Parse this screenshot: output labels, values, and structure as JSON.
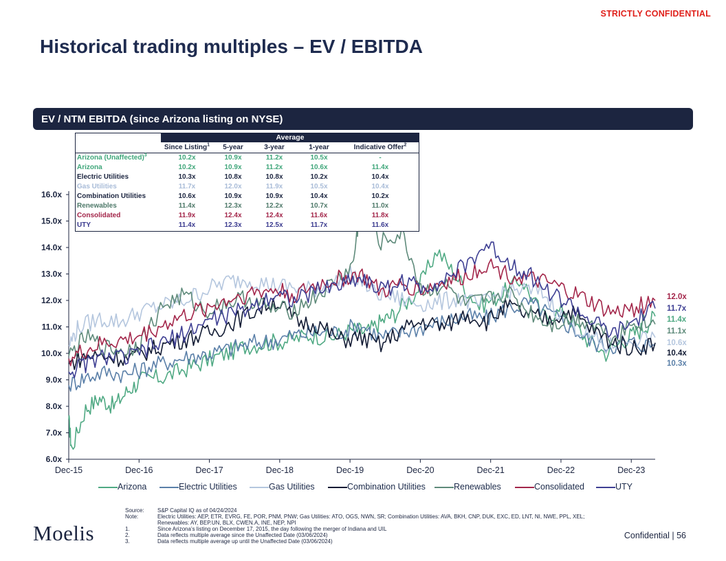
{
  "header": {
    "confidential": "STRICTLY CONFIDENTIAL",
    "title": "Historical trading multiples – EV / EBITDA"
  },
  "banner": {
    "title": "EV / NTM EBITDA (since Arizona listing on NYSE)"
  },
  "table": {
    "group_header": "Average",
    "columns": [
      "Since Listing",
      "5-year",
      "3-year",
      "1-year",
      "Indicative Offer"
    ],
    "column_sups": [
      "1",
      "",
      "",
      "",
      "2"
    ],
    "rows": [
      {
        "label": "Arizona (Unaffected)",
        "sup": "3",
        "values": [
          "10.2x",
          "10.9x",
          "11.2x",
          "10.5x",
          "-"
        ],
        "color": "#3fa67a"
      },
      {
        "label": "Arizona",
        "sup": "",
        "values": [
          "10.2x",
          "10.9x",
          "11.2x",
          "10.6x",
          "11.4x"
        ],
        "color": "#3fa67a"
      },
      {
        "label": "Electric Utilities",
        "sup": "",
        "values": [
          "10.3x",
          "10.8x",
          "10.8x",
          "10.2x",
          "10.4x"
        ],
        "color": "#1c2540"
      },
      {
        "label": "Gas Utilities",
        "sup": "",
        "values": [
          "11.7x",
          "12.0x",
          "11.9x",
          "10.5x",
          "10.4x"
        ],
        "color": "#a9bcd8"
      },
      {
        "label": "Combination Utilities",
        "sup": "",
        "values": [
          "10.6x",
          "10.9x",
          "10.9x",
          "10.4x",
          "10.2x"
        ],
        "color": "#1c2540"
      },
      {
        "label": "Renewables",
        "sup": "",
        "values": [
          "11.4x",
          "12.3x",
          "12.2x",
          "10.7x",
          "11.0x"
        ],
        "color": "#4f7a6a"
      },
      {
        "label": "Consolidated",
        "sup": "",
        "values": [
          "11.9x",
          "12.4x",
          "12.4x",
          "11.6x",
          "11.8x"
        ],
        "color": "#a3264a"
      },
      {
        "label": "UTY",
        "sup": "",
        "values": [
          "11.4x",
          "12.3x",
          "12.5x",
          "11.7x",
          "11.6x"
        ],
        "color": "#3b3b8f"
      }
    ]
  },
  "chart_data": {
    "type": "line",
    "title": "EV / NTM EBITDA (since Arizona listing on NYSE)",
    "y_tick_labels": [
      "6.0x",
      "7.0x",
      "8.0x",
      "9.0x",
      "10.0x",
      "11.0x",
      "12.0x",
      "13.0x",
      "14.0x",
      "15.0x",
      "16.0x"
    ],
    "ylim": [
      6,
      16
    ],
    "x_tick_labels": [
      "Dec-15",
      "Dec-16",
      "Dec-17",
      "Dec-18",
      "Dec-19",
      "Dec-20",
      "Dec-21",
      "Dec-22",
      "Dec-23"
    ],
    "x_tick_years": [
      2015.96,
      2016.96,
      2017.96,
      2018.96,
      2019.96,
      2020.96,
      2021.96,
      2022.96,
      2023.96
    ],
    "xlim": [
      2015.96,
      2024.3
    ],
    "series": [
      {
        "name": "Arizona",
        "color": "#4fa983",
        "x": [
          2015.96,
          2016.0,
          2016.2,
          2016.4,
          2016.6,
          2016.8,
          2017.0,
          2017.3,
          2017.6,
          2017.9,
          2018.2,
          2018.5,
          2018.8,
          2019.1,
          2019.4,
          2019.7,
          2020.0,
          2020.2,
          2020.4,
          2020.6,
          2020.9,
          2021.2,
          2021.5,
          2021.8,
          2022.1,
          2022.4,
          2022.7,
          2023.0,
          2023.3,
          2023.6,
          2023.9,
          2024.1,
          2024.3
        ],
        "y": [
          7.5,
          6.4,
          7.9,
          8.3,
          8.0,
          8.6,
          9.0,
          9.1,
          9.4,
          9.7,
          10.0,
          10.3,
          10.4,
          10.5,
          10.7,
          10.6,
          10.9,
          10.8,
          11.2,
          11.5,
          12.3,
          13.9,
          12.8,
          11.8,
          12.2,
          12.8,
          11.4,
          11.6,
          10.6,
          10.0,
          10.6,
          10.9,
          11.4
        ]
      },
      {
        "name": "Electric Utilities",
        "color": "#5a7fa8",
        "x": [
          2015.96,
          2016.2,
          2016.5,
          2016.8,
          2017.1,
          2017.4,
          2017.7,
          2018.0,
          2018.3,
          2018.6,
          2018.9,
          2019.2,
          2019.5,
          2019.8,
          2020.1,
          2020.4,
          2020.7,
          2021.0,
          2021.3,
          2021.6,
          2021.9,
          2022.2,
          2022.5,
          2022.8,
          2023.1,
          2023.4,
          2023.7,
          2024.0,
          2024.3
        ],
        "y": [
          8.8,
          9.1,
          9.3,
          9.2,
          9.5,
          9.7,
          9.9,
          10.0,
          10.2,
          10.4,
          10.5,
          10.7,
          10.8,
          10.8,
          11.1,
          10.6,
          10.8,
          11.0,
          11.2,
          11.4,
          11.3,
          11.7,
          11.9,
          11.5,
          11.0,
          10.4,
          10.3,
          10.4,
          10.3
        ]
      },
      {
        "name": "Gas Utilities",
        "color": "#b4c6de",
        "x": [
          2015.96,
          2016.1,
          2016.4,
          2016.7,
          2017.0,
          2017.3,
          2017.6,
          2017.9,
          2018.2,
          2018.5,
          2018.8,
          2019.1,
          2019.4,
          2019.7,
          2020.0,
          2020.3,
          2020.6,
          2020.9,
          2021.2,
          2021.5,
          2021.8,
          2022.1,
          2022.4,
          2022.7,
          2023.0,
          2023.3,
          2023.6,
          2023.9,
          2024.3
        ],
        "y": [
          10.3,
          11.0,
          11.3,
          11.2,
          11.6,
          11.8,
          12.0,
          12.4,
          12.7,
          12.8,
          12.6,
          12.5,
          12.4,
          12.6,
          13.0,
          12.3,
          12.1,
          11.9,
          11.9,
          12.1,
          11.8,
          12.3,
          12.4,
          12.3,
          11.3,
          10.8,
          10.2,
          10.5,
          10.6
        ]
      },
      {
        "name": "Combination Utilities",
        "color": "#111a33",
        "x": [
          2015.96,
          2016.2,
          2016.5,
          2016.8,
          2017.1,
          2017.4,
          2017.7,
          2018.0,
          2018.3,
          2018.6,
          2018.9,
          2019.2,
          2019.5,
          2019.8,
          2020.1,
          2020.4,
          2020.7,
          2021.0,
          2021.3,
          2021.6,
          2021.9,
          2022.2,
          2022.5,
          2022.8,
          2023.1,
          2023.4,
          2023.7,
          2024.0,
          2024.3
        ],
        "y": [
          9.6,
          9.9,
          9.9,
          9.8,
          10.1,
          10.4,
          10.6,
          10.8,
          11.2,
          11.6,
          12.0,
          11.2,
          11.1,
          10.5,
          10.6,
          10.3,
          10.9,
          11.2,
          11.0,
          11.5,
          11.2,
          11.8,
          11.4,
          11.3,
          11.6,
          10.9,
          10.4,
          10.2,
          10.4
        ]
      },
      {
        "name": "Renewables",
        "color": "#5e8a7a",
        "x": [
          2015.96,
          2016.2,
          2016.5,
          2016.8,
          2017.0,
          2017.3,
          2017.6,
          2017.9,
          2018.2,
          2018.5,
          2018.8,
          2019.1,
          2019.4,
          2019.7,
          2020.0,
          2020.1,
          2020.4,
          2020.7,
          2021.0,
          2021.3,
          2021.6,
          2021.9,
          2022.2,
          2022.5,
          2022.8,
          2023.1,
          2023.4,
          2023.7,
          2024.0,
          2024.3
        ],
        "y": [
          9.9,
          10.6,
          10.2,
          10.1,
          10.5,
          11.8,
          12.2,
          11.6,
          11.9,
          12.1,
          11.7,
          11.6,
          12.0,
          12.6,
          13.3,
          15.3,
          14.2,
          14.5,
          12.3,
          12.6,
          11.8,
          12.0,
          12.3,
          11.6,
          11.1,
          11.3,
          11.2,
          10.6,
          11.2,
          11.1
        ]
      },
      {
        "name": "Consolidated",
        "color": "#a3264a",
        "x": [
          2015.96,
          2016.2,
          2016.5,
          2016.8,
          2017.1,
          2017.4,
          2017.7,
          2018.0,
          2018.3,
          2018.6,
          2018.9,
          2019.2,
          2019.5,
          2019.8,
          2020.1,
          2020.4,
          2020.7,
          2021.0,
          2021.3,
          2021.6,
          2021.9,
          2022.2,
          2022.5,
          2022.8,
          2023.1,
          2023.4,
          2023.7,
          2024.0,
          2024.3
        ],
        "y": [
          9.8,
          10.1,
          10.4,
          10.5,
          10.8,
          11.2,
          11.5,
          11.8,
          12.1,
          12.3,
          12.4,
          12.2,
          12.6,
          12.8,
          13.0,
          12.3,
          12.6,
          12.4,
          12.7,
          12.9,
          13.4,
          13.0,
          12.8,
          12.6,
          12.3,
          11.9,
          11.5,
          11.7,
          12.0
        ]
      },
      {
        "name": "UTY",
        "color": "#3e3f93",
        "x": [
          2015.96,
          2016.2,
          2016.5,
          2016.8,
          2017.1,
          2017.4,
          2017.7,
          2018.0,
          2018.3,
          2018.6,
          2018.9,
          2019.2,
          2019.5,
          2019.8,
          2020.1,
          2020.4,
          2020.7,
          2021.0,
          2021.3,
          2021.6,
          2021.9,
          2022.2,
          2022.5,
          2022.8,
          2023.1,
          2023.4,
          2023.7,
          2024.0,
          2024.3
        ],
        "y": [
          9.3,
          9.6,
          9.9,
          9.8,
          10.2,
          10.5,
          10.9,
          11.3,
          11.5,
          11.8,
          12.3,
          12.0,
          12.4,
          12.6,
          12.9,
          12.4,
          12.7,
          12.5,
          12.8,
          13.3,
          14.1,
          13.5,
          13.0,
          12.3,
          11.8,
          11.2,
          10.7,
          11.2,
          11.7
        ]
      }
    ],
    "end_labels": [
      {
        "text": "12.0x",
        "value": 12.0,
        "color": "#a3264a"
      },
      {
        "text": "11.7x",
        "value": 11.7,
        "color": "#3e3f93"
      },
      {
        "text": "11.4x",
        "value": 11.4,
        "color": "#4fa983"
      },
      {
        "text": "11.1x",
        "value": 11.1,
        "color": "#5e8a7a"
      },
      {
        "text": "10.6x",
        "value": 10.6,
        "color": "#b4c6de"
      },
      {
        "text": "10.4x",
        "value": 10.4,
        "color": "#111a33"
      },
      {
        "text": "10.3x",
        "value": 10.3,
        "color": "#5a7fa8"
      }
    ]
  },
  "legend": [
    "Arizona",
    "Electric Utilities",
    "Gas Utilities",
    "Combination Utilities",
    "Renewables",
    "Consolidated",
    "UTY"
  ],
  "notes": [
    {
      "k": "Source:",
      "v": "S&P Capital IQ as of 04/24/2024"
    },
    {
      "k": "Note:",
      "v": "Electric Utilities: AEP, ETR, EVRG, FE, POR, PNM, PNW; Gas Utilities: ATO, OGS, NWN, SR; Combination Utilities: AVA, BKH, CNP, DUK, EXC, ED, LNT, NI, NWE, PPL, XEL;"
    },
    {
      "k": "",
      "v": "Renewables: AY, BEP.UN, BLX, CWEN.A, INE, NEP, NPI"
    },
    {
      "k": "1.",
      "v": "Since Arizona’s listing on December 17, 2015, the day following the merger of Indiana and UIL"
    },
    {
      "k": "2.",
      "v": "Data reflects multiple average since the Unaffected Date (03/06/2024)"
    },
    {
      "k": "3.",
      "v": "Data reflects multiple average up until the Unaffected Date (03/06/2024)"
    }
  ],
  "footer": {
    "logo": "Moelis",
    "text": "Confidential  |  56"
  }
}
